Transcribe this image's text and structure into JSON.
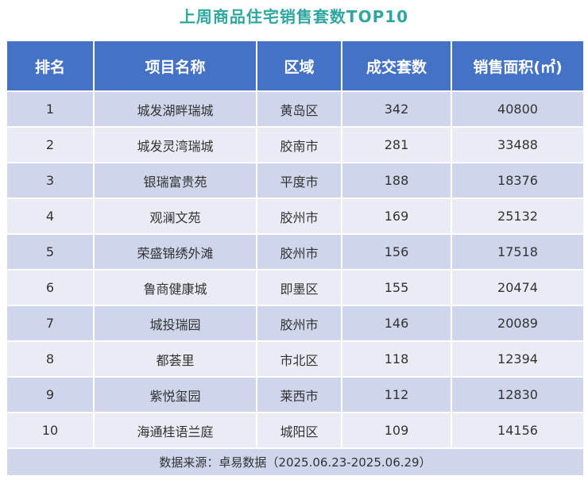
{
  "title": "上周商品住宅销售套数TOP10",
  "headers": {
    "rank": "排名",
    "project": "项目名称",
    "district": "区域",
    "units": "成交套数",
    "area": "销售面积(㎡)"
  },
  "rows": [
    {
      "rank": "1",
      "project": "城发湖畔瑞城",
      "district": "黄岛区",
      "units": "342",
      "area": "40800"
    },
    {
      "rank": "2",
      "project": "城发灵湾瑞城",
      "district": "胶南市",
      "units": "281",
      "area": "33488"
    },
    {
      "rank": "3",
      "project": "银瑞富贵苑",
      "district": "平度市",
      "units": "188",
      "area": "18376"
    },
    {
      "rank": "4",
      "project": "观澜文苑",
      "district": "胶州市",
      "units": "169",
      "area": "25132"
    },
    {
      "rank": "5",
      "project": "荣盛锦绣外滩",
      "district": "胶州市",
      "units": "156",
      "area": "17518"
    },
    {
      "rank": "6",
      "project": "鲁商健康城",
      "district": "即墨区",
      "units": "155",
      "area": "20474"
    },
    {
      "rank": "7",
      "project": "城投瑞园",
      "district": "胶州市",
      "units": "146",
      "area": "20089"
    },
    {
      "rank": "8",
      "project": "都荟里",
      "district": "市北区",
      "units": "118",
      "area": "12394"
    },
    {
      "rank": "9",
      "project": "紫悦玺园",
      "district": "莱西市",
      "units": "112",
      "area": "12830"
    },
    {
      "rank": "10",
      "project": "海通桂语兰庭",
      "district": "城阳区",
      "units": "109",
      "area": "14156"
    }
  ],
  "source": "数据来源：卓易数据（2025.06.23-2025.06.29）",
  "colors": {
    "title": "#2fa7a0",
    "header_bg": "#4472c4",
    "row_odd": "#cfd5ea",
    "row_even": "#e9ebf5"
  },
  "chart_data": {
    "type": "table",
    "title": "上周商品住宅销售套数TOP10",
    "columns": [
      "排名",
      "项目名称",
      "区域",
      "成交套数",
      "销售面积(㎡)"
    ],
    "rows": [
      [
        1,
        "城发湖畔瑞城",
        "黄岛区",
        342,
        40800
      ],
      [
        2,
        "城发灵湾瑞城",
        "胶南市",
        281,
        33488
      ],
      [
        3,
        "银瑞富贵苑",
        "平度市",
        188,
        18376
      ],
      [
        4,
        "观澜文苑",
        "胶州市",
        169,
        25132
      ],
      [
        5,
        "荣盛锦绣外滩",
        "胶州市",
        156,
        17518
      ],
      [
        6,
        "鲁商健康城",
        "即墨区",
        155,
        20474
      ],
      [
        7,
        "城投瑞园",
        "胶州市",
        146,
        20089
      ],
      [
        8,
        "都荟里",
        "市北区",
        118,
        12394
      ],
      [
        9,
        "紫悦玺园",
        "莱西市",
        112,
        12830
      ],
      [
        10,
        "海通桂语兰庭",
        "城阳区",
        109,
        14156
      ]
    ]
  }
}
